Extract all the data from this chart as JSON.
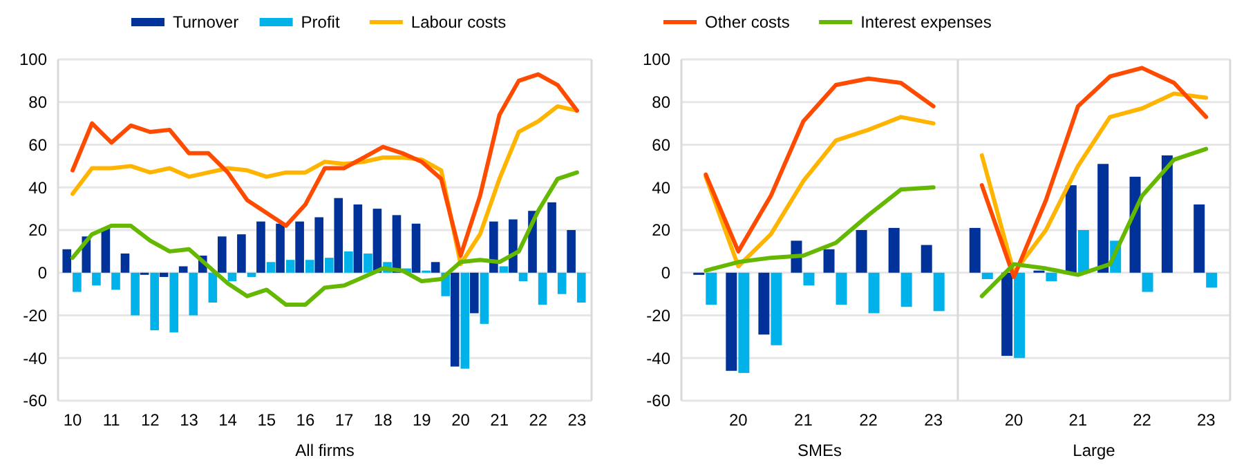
{
  "chart_data": [
    {
      "type": "bar",
      "xlabel": "All firms",
      "categories": [
        "10",
        null,
        "11",
        null,
        "12",
        null,
        "13",
        null,
        "14",
        null,
        "15",
        null,
        "16",
        null,
        "17",
        null,
        "18",
        null,
        "19",
        null,
        "20",
        null,
        "21",
        null,
        "22",
        null,
        "23"
      ],
      "ylim": [
        -60,
        100
      ],
      "yticks": [
        -60,
        -40,
        -20,
        0,
        20,
        40,
        60,
        80,
        100
      ],
      "grid": "y",
      "legend": "top",
      "series": [
        {
          "name": "Turnover",
          "color": "#003299",
          "values": [
            11,
            17,
            21,
            9,
            -1,
            -2,
            3,
            8,
            17,
            18,
            24,
            23,
            24,
            26,
            35,
            32,
            30,
            27,
            23,
            5,
            -44,
            -19,
            24,
            25,
            29,
            33,
            20
          ]
        },
        {
          "name": "Profit",
          "color": "#00b1ea",
          "values": [
            -9,
            -6,
            -8,
            -20,
            -27,
            -28,
            -20,
            -14,
            -4,
            -2,
            5,
            6,
            6,
            7,
            10,
            9,
            5,
            2,
            1,
            -11,
            -45,
            -24,
            3,
            -4,
            -15,
            -10,
            -14
          ]
        },
        {
          "name": "Labour costs",
          "type": "line",
          "color": "#ffb400",
          "values": [
            37,
            49,
            49,
            50,
            47,
            49,
            45,
            47,
            49,
            48,
            45,
            47,
            47,
            52,
            51,
            52,
            54,
            54,
            53,
            48,
            4,
            18,
            44,
            66,
            71,
            78,
            76
          ]
        },
        {
          "type": "line",
          "color": "#ff4b00",
          "values": [
            48,
            70,
            61,
            69,
            66,
            67,
            56,
            56,
            47,
            34,
            28,
            22,
            32,
            49,
            49,
            54,
            59,
            56,
            52,
            44,
            8,
            36,
            74,
            90,
            93,
            88,
            76
          ]
        },
        {
          "type": "line",
          "color": "#65b800",
          "values": [
            7,
            18,
            22,
            22,
            15,
            10,
            11,
            3,
            -5,
            -11,
            -8,
            -15,
            -15,
            -7,
            -6,
            -2,
            2,
            1,
            -4,
            -3,
            5,
            6,
            5,
            10,
            29,
            44,
            47
          ]
        }
      ]
    },
    {
      "type": "bar",
      "xlabel": "SMEs",
      "categories": [
        null,
        "20",
        null,
        "21",
        null,
        "22",
        null,
        "23"
      ],
      "ylim": [
        -60,
        100
      ],
      "yticks": [
        -60,
        -40,
        -20,
        0,
        20,
        40,
        60,
        80,
        100
      ],
      "grid": "y",
      "legend": "top",
      "series": [
        {
          "color": "#003299",
          "values": [
            -1,
            -46,
            -29,
            15,
            11,
            20,
            21,
            13
          ]
        },
        {
          "color": "#00b1ea",
          "values": [
            -15,
            -47,
            -34,
            -6,
            -15,
            -19,
            -16,
            -18
          ]
        },
        {
          "type": "line",
          "color": "#ffb400",
          "values": [
            45,
            3,
            18,
            43,
            62,
            67,
            73,
            70
          ]
        },
        {
          "name": "Other costs",
          "type": "line",
          "color": "#ff4b00",
          "values": [
            46,
            10,
            36,
            71,
            88,
            91,
            89,
            78
          ]
        },
        {
          "name": "Interest expenses",
          "type": "line",
          "color": "#65b800",
          "values": [
            1,
            5,
            7,
            8,
            14,
            27,
            39,
            40
          ]
        }
      ]
    },
    {
      "type": "bar",
      "xlabel": "Large",
      "categories": [
        null,
        "20",
        null,
        "21",
        null,
        "22",
        null,
        "23"
      ],
      "ylim": [
        -60,
        100
      ],
      "yticks": [
        -60,
        -40,
        -20,
        0,
        20,
        40,
        60,
        80,
        100
      ],
      "grid": "y",
      "tick_labels": "x",
      "series": [
        {
          "color": "#003299",
          "values": [
            21,
            -39,
            1,
            41,
            51,
            45,
            55,
            32
          ]
        },
        {
          "color": "#00b1ea",
          "values": [
            -3,
            -40,
            -4,
            20,
            15,
            -9,
            0,
            -7
          ]
        },
        {
          "type": "line",
          "color": "#ffb400",
          "values": [
            55,
            0,
            20,
            50,
            73,
            77,
            84,
            82
          ]
        },
        {
          "type": "line",
          "color": "#ff4b00",
          "values": [
            41,
            -2,
            34,
            78,
            92,
            96,
            89,
            73
          ]
        },
        {
          "type": "line",
          "color": "#65b800",
          "values": [
            -11,
            4,
            2,
            -1,
            4,
            36,
            53,
            58
          ]
        }
      ]
    }
  ]
}
